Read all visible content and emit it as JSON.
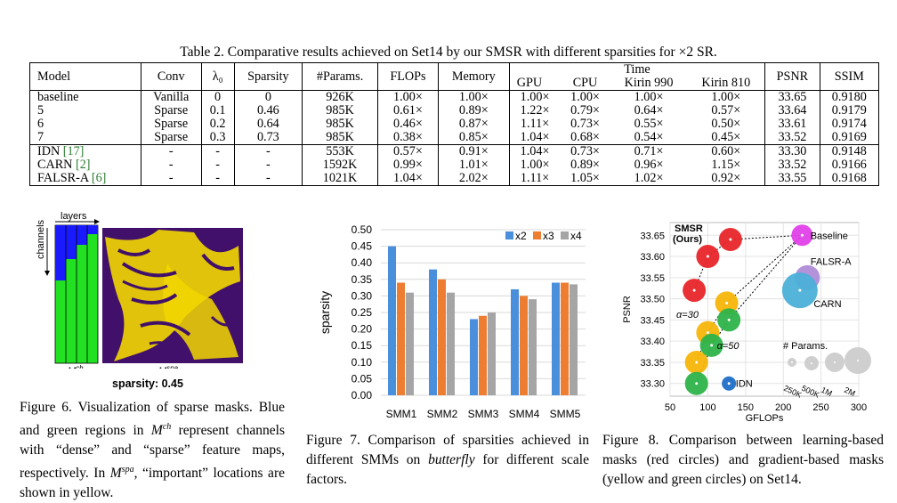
{
  "table": {
    "caption": "Table 2. Comparative results achieved on Set14 by our SMSR with different sparsities for ×2 SR.",
    "headers": {
      "model": "Model",
      "conv": "Conv",
      "lambda": "λ₀",
      "sparsity": "Sparsity",
      "params": "#Params.",
      "flops": "FLOPs",
      "memory": "Memory",
      "time": "Time",
      "gpu": "GPU",
      "cpu": "CPU",
      "kirin990": "Kirin 990",
      "kirin810": "Kirin 810",
      "psnr": "PSNR",
      "ssim": "SSIM"
    },
    "group1": [
      [
        "baseline",
        "Vanilla",
        "0",
        "0",
        "926K",
        "1.00×",
        "1.00×",
        "1.00×",
        "1.00×",
        "1.00×",
        "1.00×",
        "33.65",
        "0.9180"
      ],
      [
        "5",
        "Sparse",
        "0.1",
        "0.46",
        "985K",
        "0.61×",
        "0.89×",
        "1.22×",
        "0.79×",
        "0.64×",
        "0.57×",
        "33.64",
        "0.9179"
      ],
      [
        "6",
        "Sparse",
        "0.2",
        "0.64",
        "985K",
        "0.46×",
        "0.87×",
        "1.11×",
        "0.73×",
        "0.55×",
        "0.50×",
        "33.61",
        "0.9174"
      ],
      [
        "7",
        "Sparse",
        "0.3",
        "0.73",
        "985K",
        "0.38×",
        "0.85×",
        "1.04×",
        "0.68×",
        "0.54×",
        "0.45×",
        "33.52",
        "0.9169"
      ]
    ],
    "group2": [
      {
        "name": "IDN",
        "ref": "[17]",
        "cells": [
          "-",
          "-",
          "-",
          "553K",
          "0.57×",
          "0.91×",
          "1.04×",
          "0.73×",
          "0.71×",
          "0.60×",
          "33.30",
          "0.9148"
        ]
      },
      {
        "name": "CARN",
        "ref": "[2]",
        "cells": [
          "-",
          "-",
          "-",
          "1592K",
          "0.99×",
          "1.01×",
          "1.00×",
          "0.89×",
          "0.96×",
          "1.15×",
          "33.52",
          "0.9166"
        ]
      },
      {
        "name": "FALSR-A",
        "ref": "[6]",
        "cells": [
          "-",
          "-",
          "-",
          "1021K",
          "1.04×",
          "2.02×",
          "1.11×",
          "1.05×",
          "1.02×",
          "0.92×",
          "33.55",
          "0.9168"
        ]
      }
    ],
    "ref_color": "#2e7d32"
  },
  "fig6": {
    "layers_label": "layers",
    "channels_label": "channels",
    "mch_label": "M",
    "mch_sup": "ch",
    "mspa_label": "M",
    "mspa_sup": "spa",
    "sparsity_text": "sparsity: 0.45",
    "caption": "Figure 6. Visualization of sparse masks. Blue and green regions in M^ch represent channels with “dense” and “sparse” feature maps, respectively. In M^spa, “important” locations are shown in yellow.",
    "colors": {
      "blue": "#1a1aff",
      "green": "#22e022",
      "yellow": "#f2d700",
      "purple": "#40106a"
    }
  },
  "fig7": {
    "caption": "Figure 7. Comparison of sparsities achieved in different SMMs on butterfly for different scale factors."
  },
  "fig8": {
    "caption": "Figure 8. Comparison between learning-based masks (red circles) and gradient-based masks (yellow and green circles) on Set14.",
    "labels": {
      "smsr": "SMSR",
      "ours": "(Ours)",
      "baseline": "Baseline",
      "falsr": "FALSR-A",
      "carn": "CARN",
      "idn": "IDN",
      "a30": "α=30",
      "a50": "α=50",
      "params_title": "# Params.",
      "p250": "250K",
      "p500": "500K",
      "p1m": "1M",
      "p2m": "2M"
    }
  },
  "chart_data": [
    {
      "type": "bar",
      "title": "",
      "xlabel": "",
      "ylabel": "sparsity",
      "categories": [
        "SMM1",
        "SMM2",
        "SMM3",
        "SMM4",
        "SMM5"
      ],
      "series": [
        {
          "name": "x2",
          "color": "#4a8fdc",
          "values": [
            0.45,
            0.38,
            0.23,
            0.32,
            0.34
          ]
        },
        {
          "name": "x3",
          "color": "#ed7d31",
          "values": [
            0.34,
            0.35,
            0.24,
            0.3,
            0.34
          ]
        },
        {
          "name": "x4",
          "color": "#a5a5a5",
          "values": [
            0.31,
            0.31,
            0.25,
            0.29,
            0.335
          ]
        }
      ],
      "ylim": [
        0,
        0.5
      ],
      "yticks": [
        "0.00",
        "0.05",
        "0.10",
        "0.15",
        "0.20",
        "0.25",
        "0.30",
        "0.35",
        "0.40",
        "0.45",
        "0.50"
      ],
      "grid": true,
      "legend": "top-right"
    },
    {
      "type": "scatter",
      "title": "",
      "xlabel": "GFLOPs",
      "ylabel": "PSNR",
      "xlim": [
        50,
        300
      ],
      "ylim": [
        33.27,
        33.68
      ],
      "xticks": [
        "50",
        "100",
        "150",
        "200",
        "250",
        "300"
      ],
      "yticks": [
        "33.30",
        "33.35",
        "33.40",
        "33.45",
        "33.50",
        "33.55",
        "33.60",
        "33.65"
      ],
      "grid": true,
      "series": [
        {
          "name": "learning-based (SMSR)",
          "color": "#e8262a",
          "points": [
            [
              82,
              33.52
            ],
            [
              100,
              33.6
            ],
            [
              130,
              33.64
            ]
          ]
        },
        {
          "name": "gradient-based alpha=30",
          "color": "#f5b50a",
          "points": [
            [
              85,
              33.35
            ],
            [
              100,
              33.42
            ],
            [
              125,
              33.49
            ]
          ]
        },
        {
          "name": "gradient-based alpha=50",
          "color": "#2db34a",
          "points": [
            [
              85,
              33.3
            ],
            [
              105,
              33.39
            ],
            [
              128,
              33.45
            ]
          ]
        },
        {
          "name": "Baseline",
          "color": "#e040e8",
          "points": [
            [
              225,
              33.65
            ]
          ]
        },
        {
          "name": "FALSR-A",
          "color": "#b08cd8",
          "points": [
            [
              232,
              33.55
            ]
          ]
        },
        {
          "name": "CARN",
          "color": "#4bb0d8",
          "points": [
            [
              222,
              33.52
            ]
          ]
        },
        {
          "name": "IDN",
          "color": "#1f6fc8",
          "points": [
            [
              128,
              33.3
            ]
          ]
        }
      ]
    }
  ]
}
